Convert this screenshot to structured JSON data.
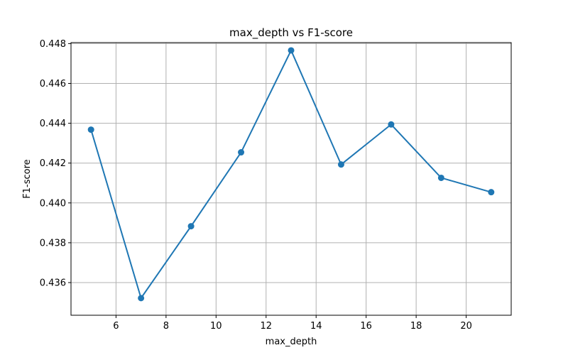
{
  "chart_data": {
    "type": "line",
    "title": "max_depth vs F1-score",
    "xlabel": "max_depth",
    "ylabel": "F1-score",
    "x": [
      5,
      7,
      9,
      11,
      13,
      15,
      17,
      19,
      21
    ],
    "series": [
      {
        "values": [
          0.44368,
          0.43522,
          0.43883,
          0.44254,
          0.44766,
          0.44193,
          0.44394,
          0.44126,
          0.44054
        ],
        "color": "#1f77b4",
        "marker": "circle"
      }
    ],
    "xlim": [
      4.2,
      21.8
    ],
    "ylim": [
      0.43436,
      0.44805
    ],
    "xticks": [
      6,
      8,
      10,
      12,
      14,
      16,
      18,
      20
    ],
    "xtick_labels": [
      "6",
      "8",
      "10",
      "12",
      "14",
      "16",
      "18",
      "20"
    ],
    "yticks": [
      0.436,
      0.438,
      0.44,
      0.442,
      0.444,
      0.446,
      0.448
    ],
    "ytick_labels": [
      "0.436",
      "0.438",
      "0.440",
      "0.442",
      "0.444",
      "0.446",
      "0.448"
    ],
    "grid": true,
    "legend": "none"
  }
}
